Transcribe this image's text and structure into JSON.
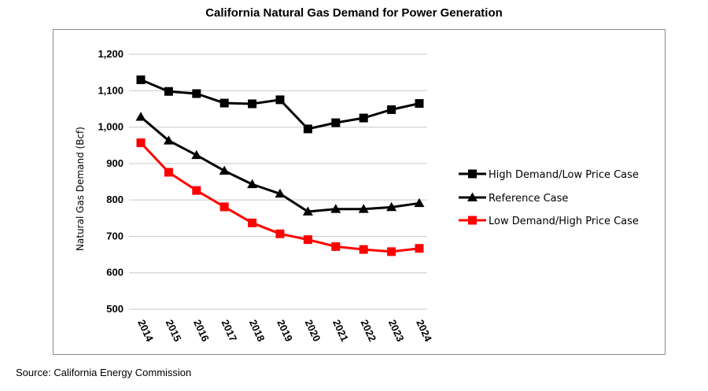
{
  "chart_data": {
    "type": "line",
    "title": "California Natural Gas Demand for Power Generation",
    "ylabel": "Natural Gas Demand (Bcf)",
    "xlabel": "",
    "ylim": [
      500,
      1200
    ],
    "yticks": [
      "500",
      "600",
      "700",
      "800",
      "900",
      "1,000",
      "1,100",
      "1,200"
    ],
    "x": [
      "2014",
      "2015",
      "2016",
      "2017",
      "2018",
      "2019",
      "2020",
      "2021",
      "2022",
      "2023",
      "2024"
    ],
    "grid": true,
    "legend_position": "right",
    "series": [
      {
        "name": "High Demand/Low Price Case",
        "color": "#000000",
        "marker": "square",
        "values": [
          1130,
          1098,
          1092,
          1066,
          1064,
          1075,
          995,
          1012,
          1025,
          1048,
          1065
        ]
      },
      {
        "name": "Reference Case",
        "color": "#000000",
        "marker": "triangle",
        "values": [
          1028,
          963,
          923,
          880,
          843,
          817,
          768,
          775,
          775,
          780,
          791
        ]
      },
      {
        "name": "Low Demand/High Price Case",
        "color": "#ff0000",
        "marker": "square",
        "values": [
          957,
          876,
          826,
          781,
          737,
          707,
          691,
          672,
          664,
          658,
          667
        ]
      }
    ]
  },
  "source": "Source: California Energy Commission"
}
